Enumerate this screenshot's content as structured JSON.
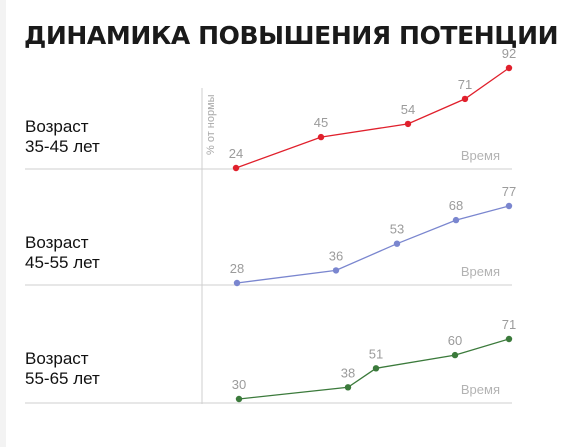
{
  "title": "ДИНАМИКА ПОВЫШЕНИЯ ПОТЕНЦИИ",
  "colors": {
    "series_1": "#e0202c",
    "series_2": "#7a86cf",
    "series_3": "#3b7a3b",
    "axis": "#cfcfcf",
    "value_label": "#9b9b9b"
  },
  "chart_data": {
    "type": "line",
    "ylabel": "% от нормы",
    "panels": [
      {
        "label_lines": [
          "Возраст",
          "35-45 лет"
        ],
        "xlabel": "Время",
        "values": [
          24,
          45,
          54,
          71,
          92
        ],
        "color_key": "series_1"
      },
      {
        "label_lines": [
          "Возраст",
          "45-55 лет"
        ],
        "xlabel": "Время",
        "values": [
          28,
          36,
          53,
          68,
          77
        ],
        "color_key": "series_2"
      },
      {
        "label_lines": [
          "Возраст",
          "55-65 лет"
        ],
        "xlabel": "Время",
        "values": [
          30,
          38,
          51,
          60,
          71
        ],
        "color_key": "series_3"
      }
    ]
  }
}
